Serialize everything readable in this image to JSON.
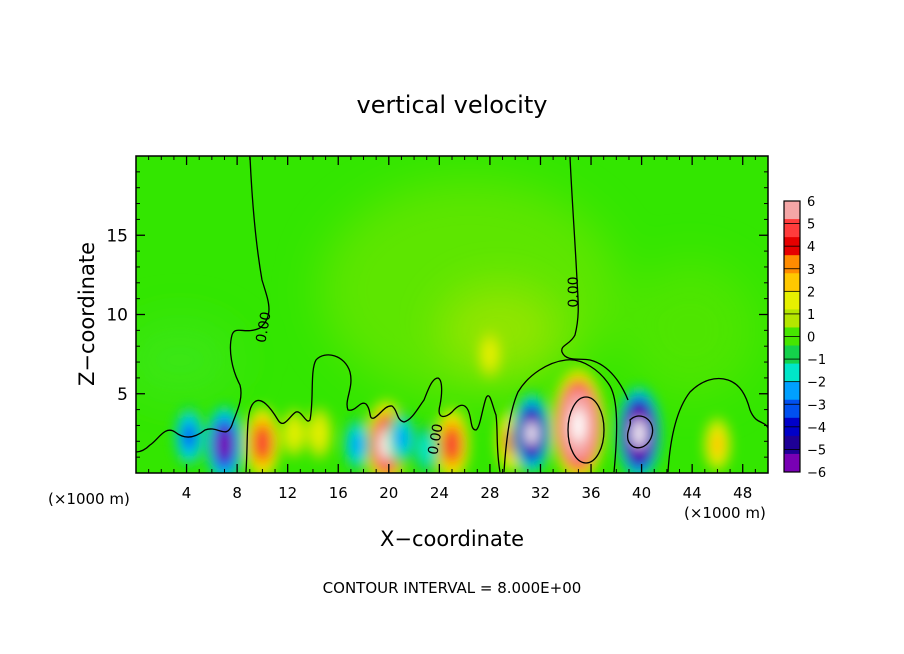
{
  "chart_data": {
    "type": "heatmap",
    "title": "vertical velocity",
    "xlabel": "X−coordinate",
    "ylabel": "Z−coordinate",
    "x_unit": "(×1000 m)",
    "footer": "CONTOUR INTERVAL = 8.000E+00",
    "contour_label": "0.00",
    "xlim": [
      0,
      50
    ],
    "ylim": [
      0,
      20
    ],
    "x_ticks": [
      4,
      8,
      12,
      16,
      20,
      24,
      28,
      32,
      36,
      40,
      44,
      48
    ],
    "y_ticks": [
      5,
      10,
      15
    ],
    "colorbar": {
      "range": [
        -6,
        6
      ],
      "tick_labels": [
        "6",
        "5",
        "4",
        "3",
        "2",
        "1",
        "0",
        "−1",
        "−2",
        "−3",
        "−4",
        "−5",
        "−6"
      ],
      "colors": [
        "#f4a6a6",
        "#ff3c3c",
        "#e60000",
        "#ff8c00",
        "#ffc800",
        "#e6f000",
        "#b4e600",
        "#46e600",
        "#14d24b",
        "#00e6c8",
        "#00a0ff",
        "#0050f0",
        "#0000c8",
        "#1e0096",
        "#7800b4"
      ]
    },
    "features": [
      {
        "type": "updraft",
        "x": 10,
        "z": 1.9,
        "w": 5.5
      },
      {
        "type": "updraft",
        "x": 12.5,
        "z": 2.5,
        "w": 1.5
      },
      {
        "type": "updraft",
        "x": 14.5,
        "z": 2.5,
        "w": 2.0
      },
      {
        "type": "updraft",
        "x": 19.8,
        "z": 1.8,
        "w": 8.0
      },
      {
        "type": "updraft",
        "x": 25,
        "z": 1.8,
        "w": 5.5
      },
      {
        "type": "updraft",
        "x": 29.7,
        "z": 2.0,
        "w": 4.0
      },
      {
        "type": "updraft",
        "x": 35,
        "z": 3.0,
        "w": 12.0
      },
      {
        "type": "updraft",
        "x": 28,
        "z": 7.5,
        "w": 1.5
      },
      {
        "type": "updraft",
        "x": 46,
        "z": 1.8,
        "w": 2.5
      },
      {
        "type": "downdraft",
        "x": 4.2,
        "z": 2.3,
        "w": -3.5
      },
      {
        "type": "downdraft",
        "x": 7,
        "z": 1.8,
        "w": -6.5
      },
      {
        "type": "downdraft",
        "x": 17.5,
        "z": 1.8,
        "w": -2.5
      },
      {
        "type": "downdraft",
        "x": 21,
        "z": 2.2,
        "w": -2.5
      },
      {
        "type": "downdraft",
        "x": 31.3,
        "z": 2.5,
        "w": -7.0
      },
      {
        "type": "downdraft",
        "x": 39.8,
        "z": 2.5,
        "w": -9.0
      },
      {
        "type": "downdraft",
        "x": 23,
        "z": 1.5,
        "w": -2.0
      }
    ]
  }
}
